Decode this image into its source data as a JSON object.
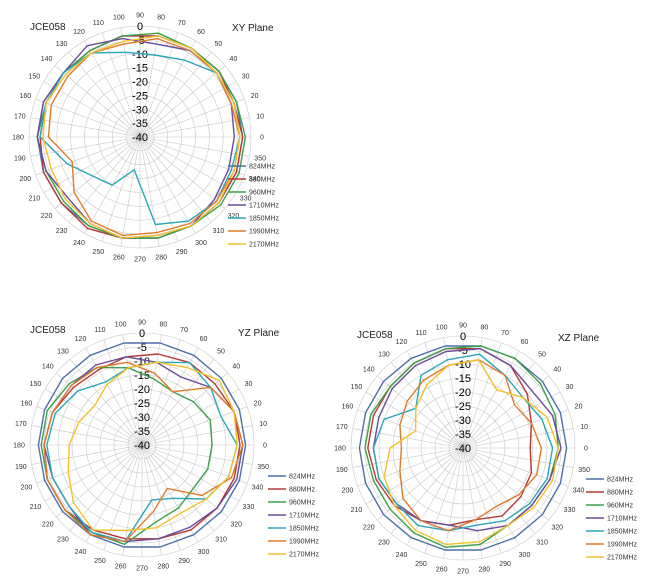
{
  "chart_data": [
    {
      "type": "polar-line",
      "label": "JCE058",
      "title": "XY  Plane",
      "radial_range": [
        -40,
        0
      ],
      "radial_ticks": [
        "0",
        "-5",
        "-10",
        "-15",
        "-20",
        "-25",
        "-30",
        "-35",
        "-40"
      ],
      "angle_ticks": [
        "0",
        "10",
        "20",
        "30",
        "40",
        "50",
        "60",
        "70",
        "80",
        "90",
        "100",
        "110",
        "120",
        "130",
        "140",
        "150",
        "160",
        "170",
        "180",
        "190",
        "200",
        "210",
        "220",
        "230",
        "240",
        "250",
        "260",
        "270",
        "280",
        "290",
        "300",
        "310",
        "320",
        "330",
        "340",
        "350"
      ],
      "angles": [
        0,
        20,
        40,
        60,
        80,
        100,
        120,
        140,
        160,
        180,
        200,
        220,
        240,
        260,
        280,
        300,
        320,
        340
      ],
      "legend_placement": "right",
      "series": [
        {
          "name": "824MHz",
          "color": "#4f6fa8",
          "values": [
            -3,
            -3,
            -3,
            -3,
            -3,
            -3,
            -4,
            -4,
            -3,
            -3,
            -3,
            -3,
            -3,
            -3,
            -3,
            -3,
            -3,
            -3
          ]
        },
        {
          "name": "880MHz",
          "color": "#b53a36",
          "values": [
            -3,
            -4,
            -3,
            -3,
            -3,
            -3,
            -4,
            -4,
            -4,
            -4,
            -3,
            -3,
            -2,
            -3,
            -3,
            -3,
            -3,
            -3
          ]
        },
        {
          "name": "960MHz",
          "color": "#3aa04a",
          "values": [
            -2,
            -3,
            -3,
            -3,
            -2,
            -3,
            -4,
            -4,
            -4,
            -3,
            -4,
            -4,
            -3,
            -3,
            -3,
            -3,
            -2,
            -2
          ]
        },
        {
          "name": "1710MHz",
          "color": "#6a4a9c",
          "values": [
            -6,
            -5,
            -4,
            -4,
            -6,
            -4,
            -2,
            -4,
            -3,
            -3,
            -4,
            -6,
            -4,
            -3,
            -4,
            -3,
            -5,
            -6
          ]
        },
        {
          "name": "1850MHz",
          "color": "#2aa6b8",
          "values": [
            -4,
            -4,
            -4,
            -8,
            -10,
            -9,
            -5,
            -4,
            -4,
            -4,
            -12,
            -18,
            -20,
            -28,
            -8,
            -5,
            -4,
            -5
          ]
        },
        {
          "name": "1990MHz",
          "color": "#e07b2a",
          "values": [
            -4,
            -5,
            -4,
            -4,
            -4,
            -6,
            -5,
            -6,
            -6,
            -7,
            -14,
            -9,
            -5,
            -4,
            -5,
            -4,
            -4,
            -4
          ]
        },
        {
          "name": "2170MHz",
          "color": "#f2c12e",
          "values": [
            -4,
            -4,
            -4,
            -3,
            -3,
            -5,
            -5,
            -5,
            -4,
            -5,
            -6,
            -5,
            -4,
            -3,
            -4,
            -3,
            -3,
            -4
          ]
        }
      ]
    },
    {
      "type": "polar-line",
      "label": "JCE058",
      "title": "YZ  Plane",
      "radial_range": [
        -40,
        0
      ],
      "radial_ticks": [
        "0",
        "-5",
        "-10",
        "-15",
        "-20",
        "-25",
        "-30",
        "-35",
        "-40"
      ],
      "angle_ticks": [
        "0",
        "10",
        "20",
        "30",
        "40",
        "50",
        "60",
        "70",
        "80",
        "90",
        "100",
        "110",
        "120",
        "130",
        "140",
        "150",
        "160",
        "170",
        "180",
        "190",
        "200",
        "210",
        "220",
        "230",
        "240",
        "250",
        "260",
        "270",
        "280",
        "290",
        "300",
        "310",
        "320",
        "330",
        "340",
        "350"
      ],
      "angles": [
        0,
        20,
        40,
        60,
        80,
        100,
        120,
        140,
        160,
        180,
        200,
        220,
        240,
        260,
        280,
        300,
        320,
        340
      ],
      "legend_placement": "right",
      "series": [
        {
          "name": "824MHz",
          "color": "#4f6fa8",
          "values": [
            -3,
            -3,
            -3,
            -3,
            -3,
            -3,
            -3,
            -3,
            -3,
            -3,
            -3,
            -3,
            -3,
            -3,
            -3,
            -3,
            -3,
            -3
          ]
        },
        {
          "name": "880MHz",
          "color": "#b53a36",
          "values": [
            -5,
            -5,
            -6,
            -6,
            -7,
            -8,
            -9,
            -8,
            -6,
            -5,
            -4,
            -4,
            -5,
            -6,
            -6,
            -5,
            -5,
            -5
          ]
        },
        {
          "name": "960MHz",
          "color": "#3aa04a",
          "values": [
            -15,
            -14,
            -16,
            -18,
            -16,
            -12,
            -8,
            -6,
            -4,
            -4,
            -4,
            -4,
            -4,
            -4,
            -12,
            -14,
            -16,
            -15
          ]
        },
        {
          "name": "1710MHz",
          "color": "#6a4a9c",
          "values": [
            -4,
            -5,
            -8,
            -12,
            -10,
            -8,
            -7,
            -7,
            -6,
            -5,
            -6,
            -6,
            -3,
            -5,
            -6,
            -6,
            -5,
            -4
          ]
        },
        {
          "name": "1850MHz",
          "color": "#2aa6b8",
          "values": [
            -6,
            -10,
            -8,
            -6,
            -10,
            -12,
            -14,
            -10,
            -7,
            -6,
            -6,
            -6,
            -4,
            -5,
            -20,
            -18,
            -10,
            -7
          ]
        },
        {
          "name": "1990MHz",
          "color": "#e07b2a",
          "values": [
            -4,
            -5,
            -8,
            -18,
            -14,
            -10,
            -8,
            -7,
            -6,
            -5,
            -4,
            -4,
            -3,
            -5,
            -16,
            -22,
            -12,
            -6
          ]
        },
        {
          "name": "2170MHz",
          "color": "#f2c12e",
          "values": [
            -6,
            -5,
            -4,
            -8,
            -10,
            -12,
            -15,
            -18,
            -16,
            -14,
            -12,
            -8,
            -5,
            -9,
            -10,
            -12,
            -10,
            -7
          ]
        }
      ]
    },
    {
      "type": "polar-line",
      "label": "JCE058",
      "title": "XZ  Plane",
      "radial_range": [
        -40,
        0
      ],
      "radial_ticks": [
        "0",
        "-5",
        "-10",
        "-15",
        "-20",
        "-25",
        "-30",
        "-35",
        "-40"
      ],
      "angle_ticks": [
        "0",
        "10",
        "20",
        "30",
        "40",
        "50",
        "60",
        "70",
        "80",
        "90",
        "100",
        "110",
        "120",
        "130",
        "140",
        "150",
        "160",
        "170",
        "180",
        "190",
        "200",
        "210",
        "220",
        "230",
        "240",
        "250",
        "260",
        "270",
        "280",
        "290",
        "300",
        "310",
        "320",
        "330",
        "340",
        "350"
      ],
      "angles": [
        0,
        20,
        40,
        60,
        80,
        100,
        120,
        140,
        160,
        180,
        200,
        220,
        240,
        260,
        280,
        300,
        320,
        340
      ],
      "legend_placement": "right",
      "series": [
        {
          "name": "824MHz",
          "color": "#4f6fa8",
          "values": [
            -3,
            -3,
            -3,
            -3,
            -3,
            -3,
            -3,
            -3,
            -3,
            -3,
            -3,
            -3,
            -3,
            -3,
            -3,
            -3,
            -3,
            -3
          ]
        },
        {
          "name": "880MHz",
          "color": "#b53a36",
          "values": [
            -16,
            -14,
            -10,
            -6,
            -4,
            -4,
            -5,
            -6,
            -6,
            -6,
            -7,
            -8,
            -10,
            -12,
            -14,
            -12,
            -13,
            -14
          ]
        },
        {
          "name": "960MHz",
          "color": "#3aa04a",
          "values": [
            -6,
            -5,
            -4,
            -3,
            -3,
            -4,
            -5,
            -6,
            -5,
            -5,
            -6,
            -6,
            -5,
            -4,
            -5,
            -8,
            -8,
            -7
          ]
        },
        {
          "name": "1710MHz",
          "color": "#6a4a9c",
          "values": [
            -5,
            -6,
            -8,
            -6,
            -4,
            -5,
            -6,
            -7,
            -8,
            -8,
            -8,
            -9,
            -10,
            -12,
            -10,
            -8,
            -8,
            -7
          ]
        },
        {
          "name": "1850MHz",
          "color": "#2aa6b8",
          "values": [
            -8,
            -10,
            -12,
            -10,
            -6,
            -8,
            -10,
            -18,
            -10,
            -8,
            -8,
            -9,
            -8,
            -10,
            -12,
            -10,
            -9,
            -8
          ]
        },
        {
          "name": "1990MHz",
          "color": "#e07b2a",
          "values": [
            -12,
            -14,
            -16,
            -10,
            -8,
            -10,
            -12,
            -14,
            -16,
            -18,
            -16,
            -12,
            -10,
            -10,
            -14,
            -16,
            -14,
            -12
          ]
        },
        {
          "name": "2170MHz",
          "color": "#f2c12e",
          "values": [
            -6,
            -8,
            -12,
            -16,
            -8,
            -10,
            -14,
            -18,
            -22,
            -14,
            -10,
            -8,
            -6,
            -5,
            -6,
            -8,
            -7,
            -6
          ]
        }
      ]
    }
  ]
}
